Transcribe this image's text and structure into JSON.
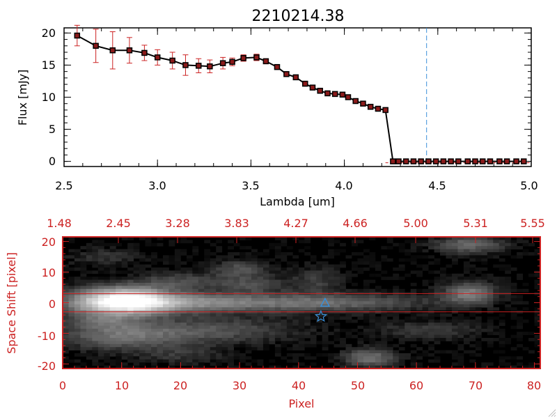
{
  "chart_data": [
    {
      "type": "line",
      "title": "2210214.38",
      "xlabel": "Lambda [um]",
      "ylabel": "Flux [mJy]",
      "xlim": [
        2.5,
        5.0
      ],
      "ylim": [
        -0.8,
        20.8
      ],
      "xticks": [
        "2.5",
        "3.0",
        "3.5",
        "4.0",
        "4.5",
        "5.0"
      ],
      "yticks": [
        "0",
        "5",
        "10",
        "15",
        "20"
      ],
      "colors": {
        "line": "#000000",
        "marker_edge": "#000000",
        "marker_fill": "#8b1a1a",
        "error_bars": "#cc2222",
        "vline": "#3a8fd8",
        "zero_line": "#cc2222"
      },
      "vline_x": 4.44,
      "grid": false,
      "legend": "none",
      "series": [
        {
          "x": [
            2.57,
            2.67,
            2.76,
            2.85,
            2.93,
            3.0,
            3.08,
            3.15,
            3.22,
            3.28,
            3.35,
            3.4,
            3.46,
            3.53,
            3.58,
            3.64,
            3.69,
            3.74,
            3.79,
            3.83,
            3.87,
            3.91,
            3.95,
            3.99,
            4.02,
            4.06,
            4.1,
            4.14,
            4.18,
            4.22,
            4.26,
            4.29,
            4.33,
            4.37,
            4.41,
            4.45,
            4.49,
            4.53,
            4.57,
            4.61,
            4.66,
            4.7,
            4.74,
            4.78,
            4.83,
            4.87,
            4.92,
            4.96
          ],
          "y": [
            19.6,
            18.0,
            17.3,
            17.3,
            16.9,
            16.2,
            15.7,
            15.0,
            14.9,
            14.8,
            15.3,
            15.5,
            16.1,
            16.2,
            15.6,
            14.7,
            13.6,
            13.1,
            12.1,
            11.5,
            11.0,
            10.6,
            10.5,
            10.4,
            10.0,
            9.4,
            9.0,
            8.5,
            8.2,
            8.0,
            0.0,
            0.0,
            0.0,
            0.0,
            0.0,
            0.0,
            0.0,
            0.0,
            0.0,
            0.0,
            0.0,
            0.0,
            0.0,
            0.0,
            0.0,
            0.0,
            0.0,
            0.0
          ],
          "yerr": [
            1.6,
            2.6,
            2.9,
            2.0,
            1.2,
            1.2,
            1.3,
            1.6,
            1.1,
            1.0,
            0.9,
            0.6,
            0.5,
            0.5,
            0.4,
            0.4,
            0.3,
            0.3,
            0.3,
            0.3,
            0.3,
            0.3,
            0.3,
            0.3,
            0.3,
            0.3,
            0.3,
            0.3,
            0.3,
            0.3,
            0.1,
            0.1,
            0.1,
            0.1,
            0.1,
            0.1,
            0.1,
            0.1,
            0.1,
            0.1,
            0.1,
            0.1,
            0.1,
            0.1,
            0.1,
            0.1,
            0.1,
            0.1
          ]
        }
      ]
    },
    {
      "type": "heatmap",
      "xlabel": "Pixel",
      "ylabel": "Space Shift [pixel]",
      "xlim": [
        0,
        81
      ],
      "ylim": [
        -21.5,
        21.5
      ],
      "xticks": [
        "0",
        "10",
        "20",
        "30",
        "40",
        "50",
        "60",
        "70",
        "80"
      ],
      "yticks": [
        "-20",
        "-10",
        "0",
        "10",
        "20"
      ],
      "top_axis_ticks": [
        "1.48",
        "2.45",
        "3.28",
        "3.83",
        "4.27",
        "4.66",
        "5.00",
        "5.31",
        "5.55"
      ],
      "colormap": "grayscale",
      "colors": {
        "axes": "#cc2222",
        "aperture_lines": "#cc2222",
        "markers": "#3a8fd8"
      },
      "aperture_y": [
        -3,
        3
      ],
      "markers": [
        {
          "x": 44.5,
          "y": 0,
          "shape": "triangle"
        },
        {
          "x": 43.8,
          "y": -4.5,
          "shape": "star"
        }
      ],
      "blobs": [
        {
          "x": 11,
          "y": 0.5,
          "amp": 1.0,
          "sx": 5,
          "sy": 3
        },
        {
          "x": 4,
          "y": 0,
          "amp": 0.25,
          "sx": 4,
          "sy": 3
        },
        {
          "x": 20,
          "y": 0,
          "amp": 0.35,
          "sx": 8,
          "sy": 2.2
        },
        {
          "x": 35,
          "y": 0,
          "amp": 0.25,
          "sx": 10,
          "sy": 2
        },
        {
          "x": 50,
          "y": 0,
          "amp": 0.2,
          "sx": 10,
          "sy": 2
        },
        {
          "x": 69,
          "y": 3,
          "amp": 0.4,
          "sx": 3,
          "sy": 2.5
        },
        {
          "x": 10,
          "y": -11,
          "amp": 0.3,
          "sx": 7,
          "sy": 3
        },
        {
          "x": 25,
          "y": -9,
          "amp": 0.22,
          "sx": 10,
          "sy": 3
        },
        {
          "x": 7,
          "y": -6,
          "amp": 0.2,
          "sx": 4,
          "sy": 2
        },
        {
          "x": 20,
          "y": 7,
          "amp": 0.2,
          "sx": 5,
          "sy": 2
        },
        {
          "x": 32,
          "y": 6,
          "amp": 0.2,
          "sx": 4,
          "sy": 2
        },
        {
          "x": 30,
          "y": 11,
          "amp": 0.22,
          "sx": 3,
          "sy": 2
        },
        {
          "x": 43,
          "y": 7,
          "amp": 0.15,
          "sx": 3,
          "sy": 3
        },
        {
          "x": 52,
          "y": -18,
          "amp": 0.35,
          "sx": 3,
          "sy": 2
        },
        {
          "x": 69,
          "y": 19,
          "amp": 0.3,
          "sx": 4,
          "sy": 2
        },
        {
          "x": 62,
          "y": -9,
          "amp": 0.15,
          "sx": 6,
          "sy": 2
        },
        {
          "x": 20,
          "y": -17,
          "amp": 0.12,
          "sx": 5,
          "sy": 2
        },
        {
          "x": 7,
          "y": 15,
          "amp": 0.12,
          "sx": 4,
          "sy": 2
        }
      ]
    }
  ]
}
